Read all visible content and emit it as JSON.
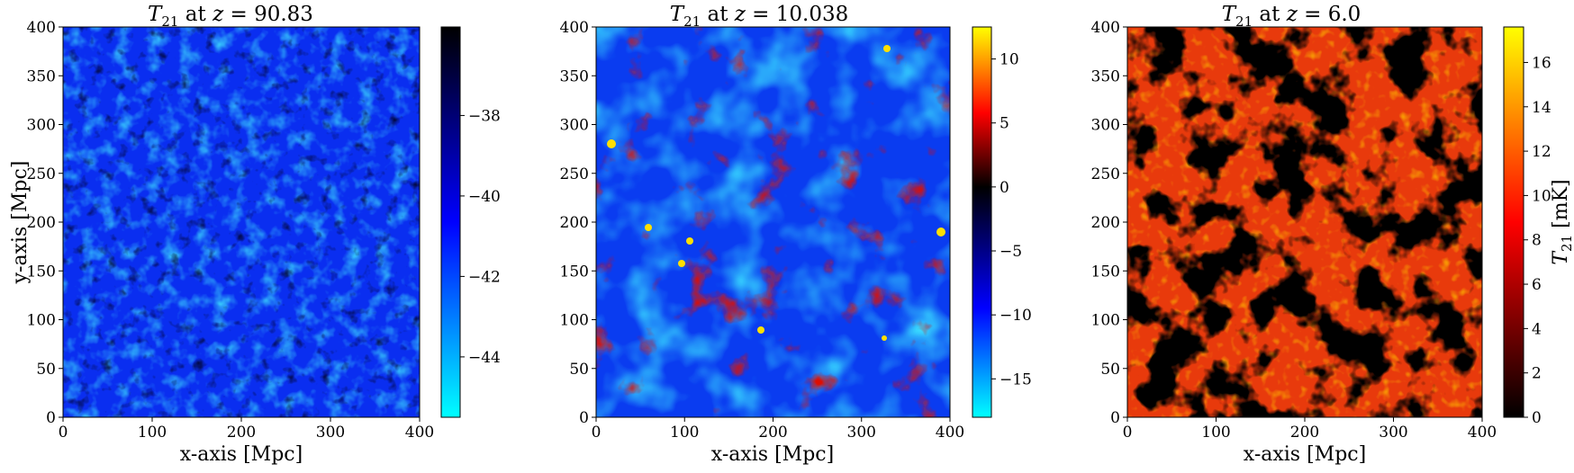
{
  "chart_data": [
    {
      "type": "heatmap",
      "title_prefix": "T",
      "title_sub": "21",
      "title_mid": " at ",
      "title_var": "z",
      "title_val": " = 90.83",
      "xlabel": "x-axis [Mpc]",
      "ylabel": "y-axis [Mpc]",
      "xlim": [
        0,
        400
      ],
      "ylim": [
        0,
        400
      ],
      "xticks": [
        "0",
        "100",
        "200",
        "300",
        "400"
      ],
      "yticks": [
        "0",
        "50",
        "100",
        "150",
        "200",
        "250",
        "300",
        "350",
        "400"
      ],
      "colormap": "cyan-blue-black",
      "colorbar_range": [
        -45.5,
        -35.8
      ],
      "colorbar_ticks": [
        -44,
        -42,
        -40,
        -38
      ],
      "colorbar_labels": [
        "−44",
        "−42",
        "−40",
        "−38"
      ],
      "colorbar_label": ""
    },
    {
      "type": "heatmap",
      "title_prefix": "T",
      "title_sub": "21",
      "title_mid": " at ",
      "title_var": "z",
      "title_val": " = 10.038",
      "xlabel": "x-axis [Mpc]",
      "ylabel": "",
      "xlim": [
        0,
        400
      ],
      "ylim": [
        0,
        400
      ],
      "xticks": [
        "0",
        "100",
        "200",
        "300",
        "400"
      ],
      "yticks": [
        "0",
        "50",
        "100",
        "150",
        "200",
        "250",
        "300",
        "350",
        "400"
      ],
      "colormap": "cyan-blue-black-red-yellow",
      "colorbar_range": [
        -18,
        12.5
      ],
      "colorbar_ticks": [
        -15,
        -10,
        -5,
        0,
        5,
        10
      ],
      "colorbar_labels": [
        "−15",
        "−10",
        "−5",
        "0",
        "5",
        "10"
      ],
      "colorbar_label": ""
    },
    {
      "type": "heatmap",
      "title_prefix": "T",
      "title_sub": "21",
      "title_mid": " at ",
      "title_var": "z",
      "title_val": " = 6.0",
      "xlabel": "x-axis [Mpc]",
      "ylabel": "",
      "xlim": [
        0,
        400
      ],
      "ylim": [
        0,
        400
      ],
      "xticks": [
        "0",
        "100",
        "200",
        "300",
        "400"
      ],
      "yticks": [
        "0",
        "50",
        "100",
        "150",
        "200",
        "250",
        "300",
        "350",
        "400"
      ],
      "colormap": "black-red-yellow",
      "colorbar_range": [
        0,
        17.6
      ],
      "colorbar_ticks": [
        0,
        2,
        4,
        6,
        8,
        10,
        12,
        14,
        16
      ],
      "colorbar_labels": [
        "0",
        "2",
        "4",
        "6",
        "8",
        "10",
        "12",
        "14",
        "16"
      ],
      "colorbar_label_var": "T",
      "colorbar_label_sub": "21",
      "colorbar_label_unit": " [mK]"
    }
  ],
  "colors": {
    "cyan": "#00ffff",
    "blue": "#0000ff",
    "black": "#000000",
    "red": "#ff0000",
    "yellow": "#ffff00"
  }
}
